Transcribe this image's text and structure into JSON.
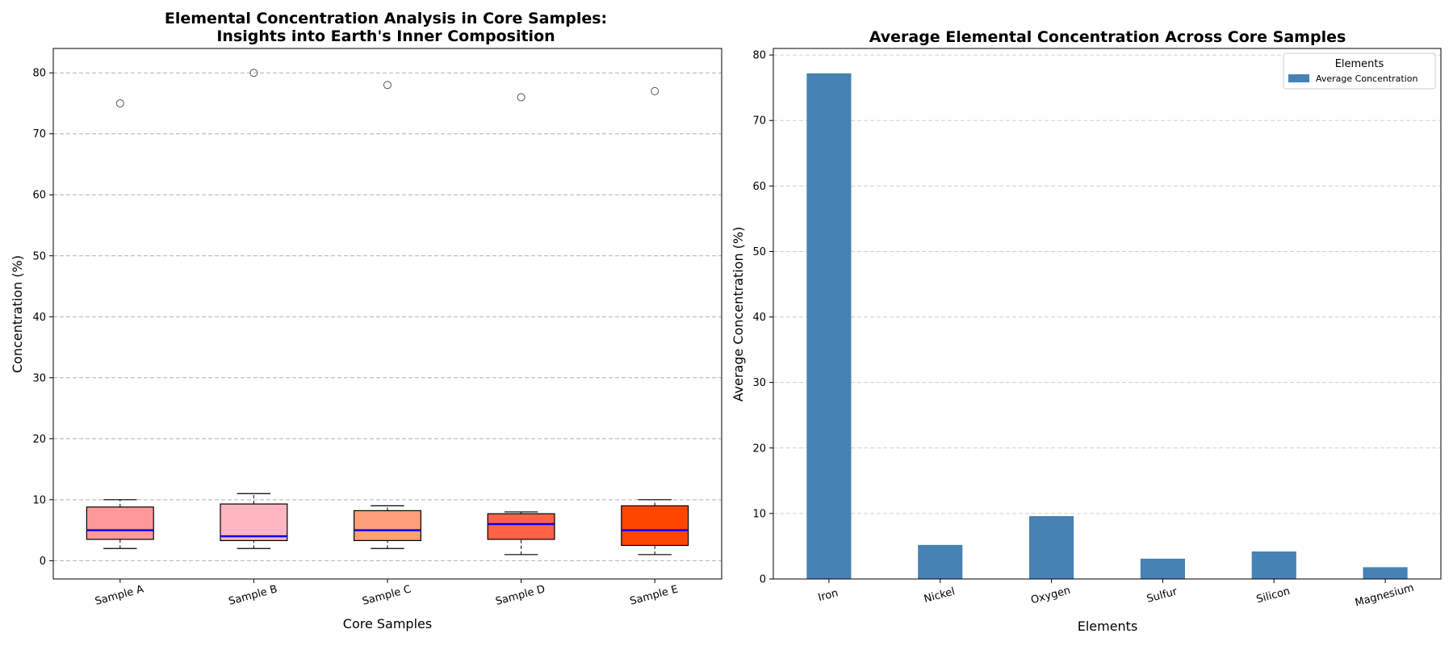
{
  "chart_data": [
    {
      "type": "box",
      "title_line1": "Elemental Concentration Analysis in Core Samples:",
      "title_line2": "Insights into Earth's Inner Composition",
      "xlabel": "Core Samples",
      "ylabel": "Concentration (%)",
      "ylim": [
        -3,
        84
      ],
      "yticks": [
        0,
        10,
        20,
        30,
        40,
        50,
        60,
        70,
        80
      ],
      "grid": "y-dashed",
      "median_color": "#0000ff",
      "categories": [
        "Sample A",
        "Sample B",
        "Sample C",
        "Sample D",
        "Sample E"
      ],
      "boxes": [
        {
          "name": "Sample A",
          "whisker_low": 2,
          "q1": 3.5,
          "median": 5,
          "q3": 8.8,
          "whisker_high": 10,
          "outliers": [
            75
          ],
          "color": "#ff9999"
        },
        {
          "name": "Sample B",
          "whisker_low": 2,
          "q1": 3.3,
          "median": 4,
          "q3": 9.3,
          "whisker_high": 11,
          "outliers": [
            80
          ],
          "color": "#ffb6c1"
        },
        {
          "name": "Sample C",
          "whisker_low": 2,
          "q1": 3.3,
          "median": 5,
          "q3": 8.2,
          "whisker_high": 9,
          "outliers": [
            78
          ],
          "color": "#ffa07a"
        },
        {
          "name": "Sample D",
          "whisker_low": 1,
          "q1": 3.5,
          "median": 6,
          "q3": 7.7,
          "whisker_high": 8,
          "outliers": [
            76
          ],
          "color": "#ff6347"
        },
        {
          "name": "Sample E",
          "whisker_low": 1,
          "q1": 2.5,
          "median": 5,
          "q3": 9,
          "whisker_high": 10,
          "outliers": [
            77
          ],
          "color": "#ff4500"
        }
      ]
    },
    {
      "type": "bar",
      "title": "Average Elemental Concentration Across Core Samples",
      "xlabel": "Elements",
      "ylabel": "Average Concentration (%)",
      "ylim": [
        0,
        81
      ],
      "yticks": [
        0,
        10,
        20,
        30,
        40,
        50,
        60,
        70,
        80
      ],
      "grid": "y-dashed",
      "bar_color": "#4682b4",
      "categories": [
        "Iron",
        "Nickel",
        "Oxygen",
        "Sulfur",
        "Silicon",
        "Magnesium"
      ],
      "values": [
        77.2,
        5.2,
        9.6,
        3.1,
        4.2,
        1.8
      ],
      "legend": {
        "title": "Elements",
        "entries": [
          "Average Concentration"
        ],
        "placement": "top-right"
      }
    }
  ]
}
